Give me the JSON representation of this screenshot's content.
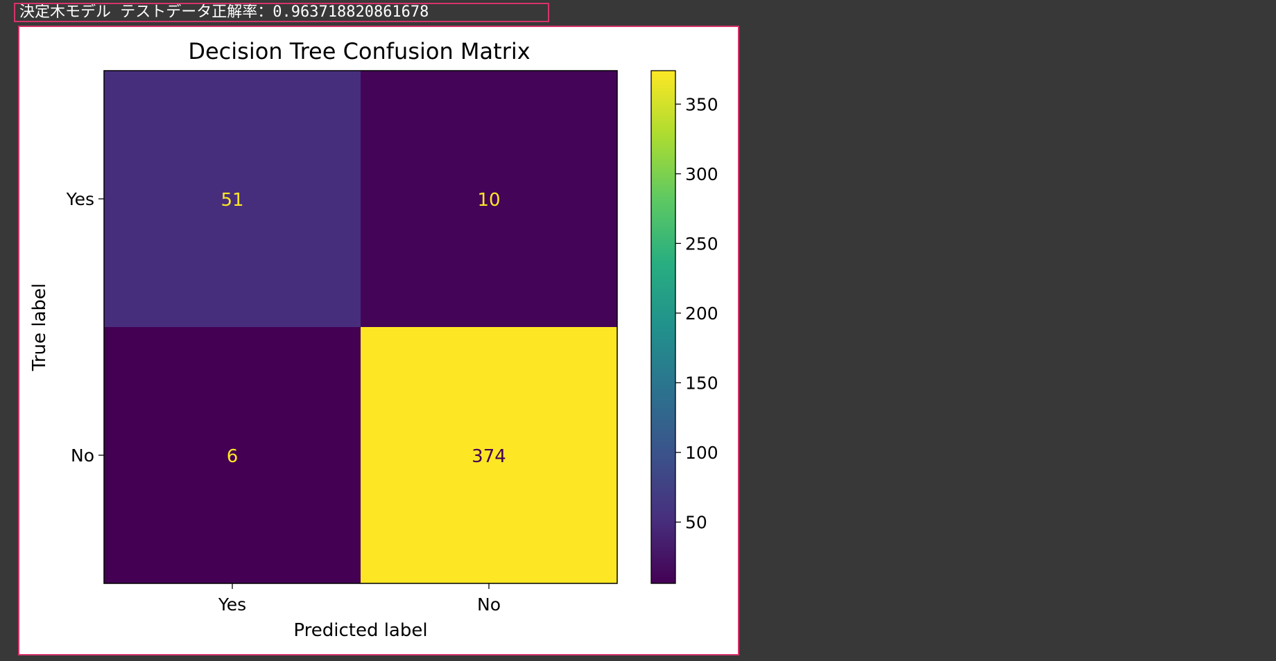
{
  "output": {
    "accuracy_label": "決定木モデル テストデータ正解率：",
    "accuracy_value": "0.963718820861678"
  },
  "colors": {
    "frame_border": "#d6336c",
    "background": "#383838",
    "dark_cell_text": "#fde725",
    "light_cell_text": "#440154"
  },
  "chart_data": {
    "type": "heatmap",
    "title": "Decision Tree Confusion Matrix",
    "xlabel": "Predicted label",
    "ylabel": "True label",
    "x_categories": [
      "Yes",
      "No"
    ],
    "y_categories": [
      "Yes",
      "No"
    ],
    "values": [
      [
        51,
        10
      ],
      [
        6,
        374
      ]
    ],
    "colormap": "viridis",
    "colorbar": {
      "range": [
        6,
        374
      ],
      "ticks": [
        50,
        100,
        150,
        200,
        250,
        300,
        350
      ]
    },
    "grid": false
  }
}
